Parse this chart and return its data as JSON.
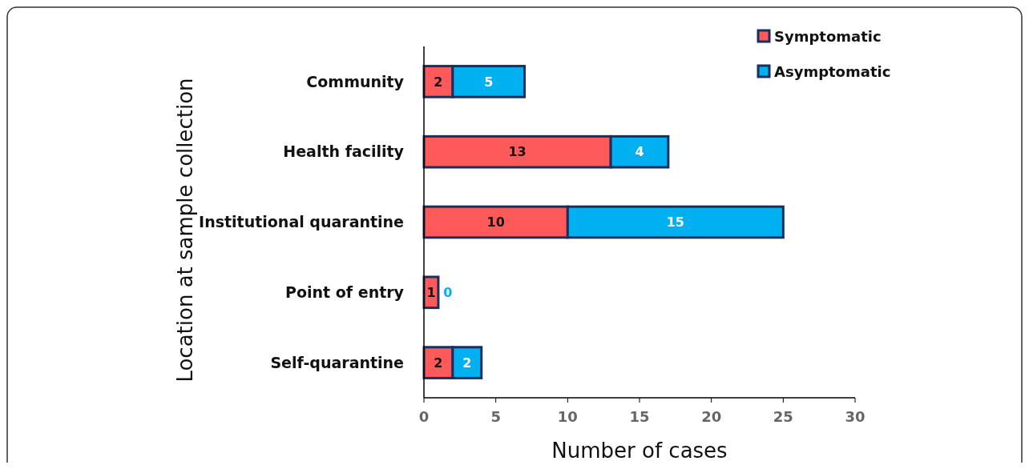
{
  "chart_data": {
    "type": "bar",
    "orientation": "horizontal",
    "stacked": true,
    "categories": [
      "Community",
      "Health facility",
      "Institutional quarantine",
      "Point of entry",
      "Self-quarantine"
    ],
    "series": [
      {
        "name": "Symptomatic",
        "color": "#ff5a5a",
        "values": [
          2,
          13,
          10,
          1,
          2
        ]
      },
      {
        "name": "Asymptomatic",
        "color": "#00b0f0",
        "values": [
          5,
          4,
          15,
          0,
          2
        ]
      }
    ],
    "xlim": [
      0,
      30
    ],
    "xticks": [
      0,
      5,
      10,
      15,
      20,
      25,
      30
    ],
    "xlabel": "Number of cases",
    "ylabel": "Location at sample collection",
    "data_labels": true,
    "legend": "top right",
    "grid": false
  }
}
